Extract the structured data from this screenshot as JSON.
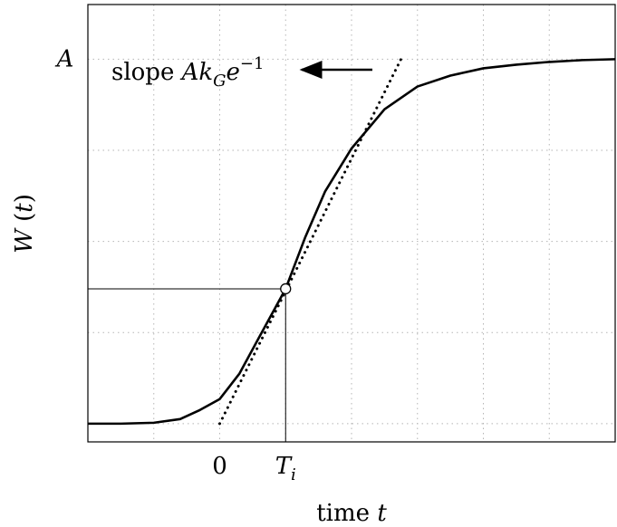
{
  "chart_data": {
    "type": "line",
    "xlabel": "time t",
    "ylabel": "W(t)",
    "grid": true,
    "xlim": [
      -2,
      6
    ],
    "ylim": [
      -0.2,
      4.6
    ],
    "x_ticks": [
      {
        "value": 0,
        "label": "0"
      },
      {
        "value": 1,
        "label": "T_i"
      }
    ],
    "y_ticks": [
      {
        "value": 4,
        "label": "A"
      }
    ],
    "series": [
      {
        "style": "solid",
        "x": [
          -2,
          -1.5,
          -1,
          -0.6,
          -0.3,
          0,
          0.3,
          0.6,
          1,
          1.3,
          1.6,
          2,
          2.5,
          3,
          3.5,
          4,
          4.5,
          5,
          5.5,
          6
        ],
        "y": [
          0.0,
          0.0,
          0.01,
          0.05,
          0.15,
          0.27,
          0.55,
          0.95,
          1.48,
          2.05,
          2.55,
          3.02,
          3.45,
          3.7,
          3.82,
          3.9,
          3.94,
          3.97,
          3.99,
          4.0
        ]
      },
      {
        "style": "dotted",
        "x": [
          0,
          2.75
        ],
        "y": [
          0.0,
          4.0
        ]
      }
    ],
    "inflection_point": {
      "x": 1,
      "y": 1.48,
      "label_x": "T_i"
    },
    "annotation": {
      "text_parts": [
        "slope ",
        "Ak",
        "G",
        "e",
        "−1"
      ],
      "x_text": 2.45,
      "y_text": 3.7
    }
  }
}
